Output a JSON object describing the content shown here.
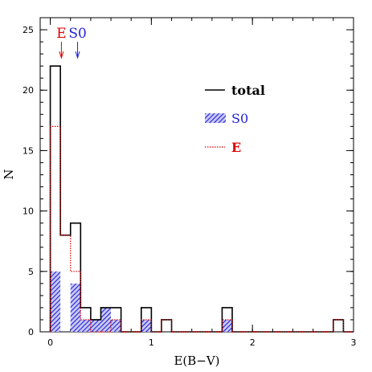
{
  "chart_data": {
    "type": "bar",
    "histogram": true,
    "xlabel": "E(B−V)",
    "ylabel": "N",
    "xlim": [
      -0.1,
      3.0
    ],
    "ylim": [
      0,
      26
    ],
    "xticks": [
      0,
      1,
      2,
      3
    ],
    "xtick_labels": [
      "0",
      "1",
      "2",
      "3"
    ],
    "yticks": [
      0,
      5,
      10,
      15,
      20,
      25
    ],
    "ytick_labels": [
      "0",
      "5",
      "10",
      "15",
      "20",
      "25"
    ],
    "x_minor_step": 0.2,
    "y_minor_step": 1,
    "bin_edges": [
      0.0,
      0.1,
      0.2,
      0.3,
      0.4,
      0.5,
      0.6,
      0.7,
      0.8,
      0.9,
      1.0,
      1.1,
      1.2,
      1.3,
      1.4,
      1.5,
      1.6,
      1.7,
      1.8,
      1.9,
      2.0,
      2.1,
      2.2,
      2.3,
      2.4,
      2.5,
      2.6,
      2.7,
      2.8,
      2.9,
      3.0
    ],
    "series": [
      {
        "name": "total",
        "style": "solid-step",
        "color": "#000000",
        "values": [
          22,
          8,
          9,
          2,
          1,
          2,
          2,
          0,
          0,
          2,
          0,
          1,
          0,
          0,
          0,
          0,
          0,
          2,
          0,
          0,
          0,
          0,
          0,
          0,
          0,
          0,
          0,
          0,
          1,
          0
        ]
      },
      {
        "name": "S0",
        "style": "hatched",
        "color": "#2222dd",
        "values": [
          5,
          0,
          4,
          1,
          1,
          2,
          1,
          0,
          0,
          1,
          0,
          0,
          0,
          0,
          0,
          0,
          0,
          1,
          0,
          0,
          0,
          0,
          0,
          0,
          0,
          0,
          0,
          0,
          0,
          0
        ]
      },
      {
        "name": "E",
        "style": "dotted-step",
        "color": "#dd0000",
        "values": [
          17,
          8,
          5,
          1,
          0,
          0,
          1,
          0,
          0,
          1,
          0,
          1,
          0,
          0,
          0,
          0,
          0,
          1,
          0,
          0,
          0,
          0,
          0,
          0,
          0,
          0,
          0,
          0,
          1,
          0
        ]
      }
    ],
    "markers": [
      {
        "label": "E",
        "x": 0.11,
        "color": "#dd0000"
      },
      {
        "label": "S0",
        "x": 0.27,
        "color": "#2222dd"
      }
    ],
    "legend": {
      "position": "upper-right",
      "entries": [
        {
          "label": "total",
          "style": "solid-line",
          "color": "#000000",
          "text_color": "#000000",
          "bold": true
        },
        {
          "label": "S0",
          "style": "hatched-box",
          "color": "#2222dd",
          "text_color": "#2222dd",
          "bold": false
        },
        {
          "label": "E",
          "style": "dotted-line",
          "color": "#dd0000",
          "text_color": "#dd0000",
          "bold": true
        }
      ]
    }
  }
}
